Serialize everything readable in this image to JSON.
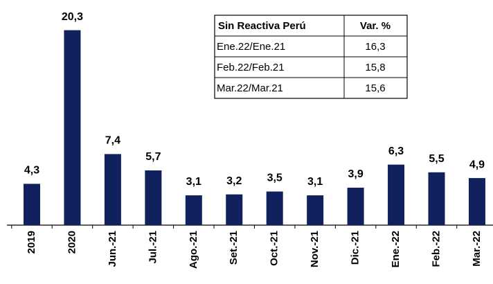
{
  "chart_data": {
    "type": "bar",
    "categories": [
      "2019",
      "2020",
      "Jun.-21",
      "Jul.-21",
      "Ago.-21",
      "Set.-21",
      "Oct.-21",
      "Nov.-21",
      "Dic.-21",
      "Ene.-22",
      "Feb.-22",
      "Mar.-22"
    ],
    "values": [
      4.3,
      20.3,
      7.4,
      5.7,
      3.1,
      3.2,
      3.5,
      3.1,
      3.9,
      6.3,
      5.5,
      4.9
    ],
    "value_labels": [
      "4,3",
      "20,3",
      "7,4",
      "5,7",
      "3,1",
      "3,2",
      "3,5",
      "3,1",
      "3,9",
      "6,3",
      "5,5",
      "4,9"
    ],
    "color": "#10215e",
    "ylim": [
      0,
      22
    ],
    "inset_table": {
      "columns": [
        "Sin Reactiva Perú",
        "Var. %"
      ],
      "rows": [
        [
          "Ene.22/Ene.21",
          "16,3"
        ],
        [
          "Feb.22/Feb.21",
          "15,8"
        ],
        [
          "Mar.22/Mar.21",
          "15,6"
        ]
      ]
    }
  }
}
